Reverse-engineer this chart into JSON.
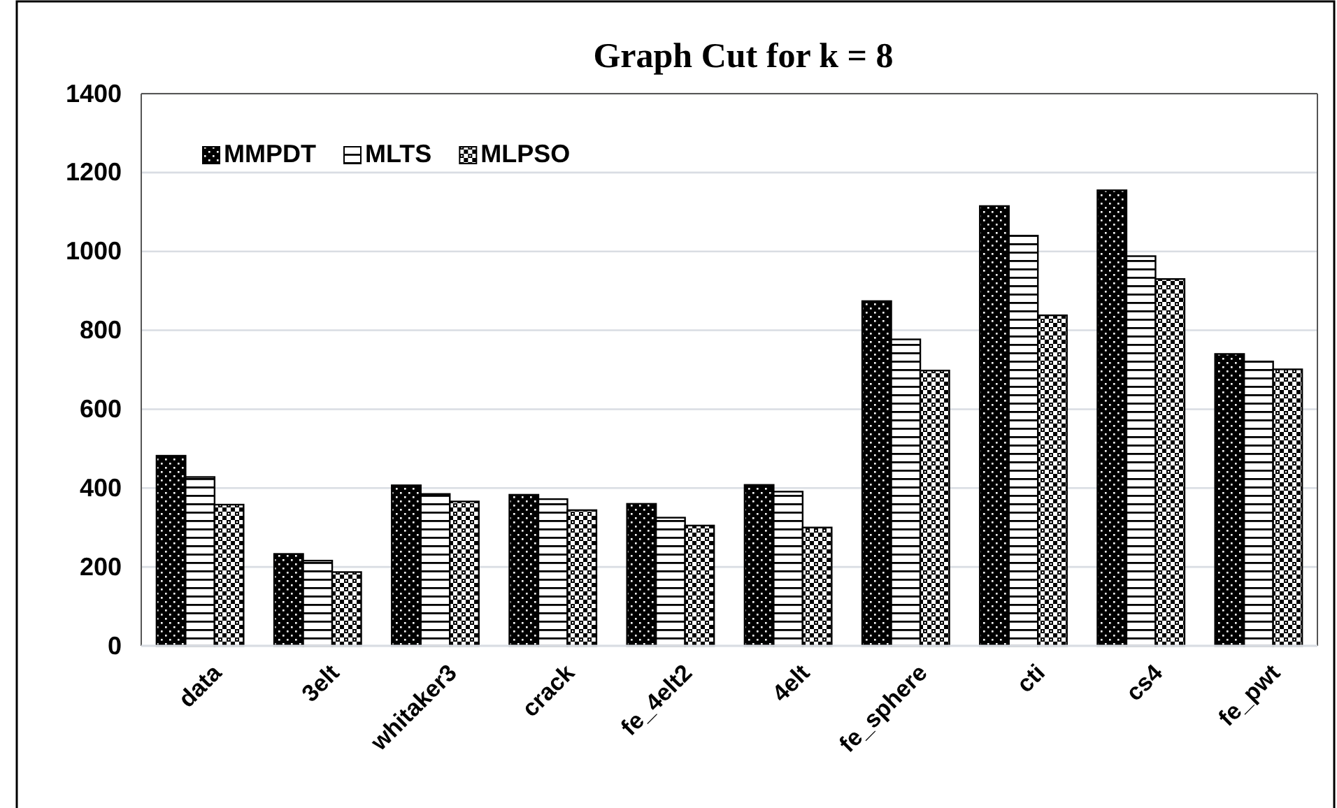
{
  "chart_data": {
    "type": "bar",
    "title": "Graph Cut for k = 8",
    "categories": [
      "data",
      "3elt",
      "whitaker3",
      "crack",
      "fe_4elt2",
      "4elt",
      "fe_sphere",
      "cti",
      "cs4",
      "fe_pwt"
    ],
    "series": [
      {
        "name": "MMPDT",
        "color": "#000000",
        "values": [
          482,
          233,
          407,
          383,
          360,
          408,
          874,
          1115,
          1155,
          740
        ]
      },
      {
        "name": "MLTS",
        "color": "#000000",
        "values": [
          428,
          216,
          385,
          372,
          325,
          391,
          777,
          1040,
          988,
          721
        ]
      },
      {
        "name": "MLPSO",
        "color": "#000000",
        "values": [
          358,
          187,
          366,
          344,
          305,
          300,
          698,
          838,
          930,
          701
        ]
      }
    ],
    "ylim": [
      0,
      1400
    ],
    "yticks": [
      0,
      200,
      400,
      600,
      800,
      1000,
      1200,
      1400
    ],
    "grid": "y",
    "legend": "top left"
  }
}
